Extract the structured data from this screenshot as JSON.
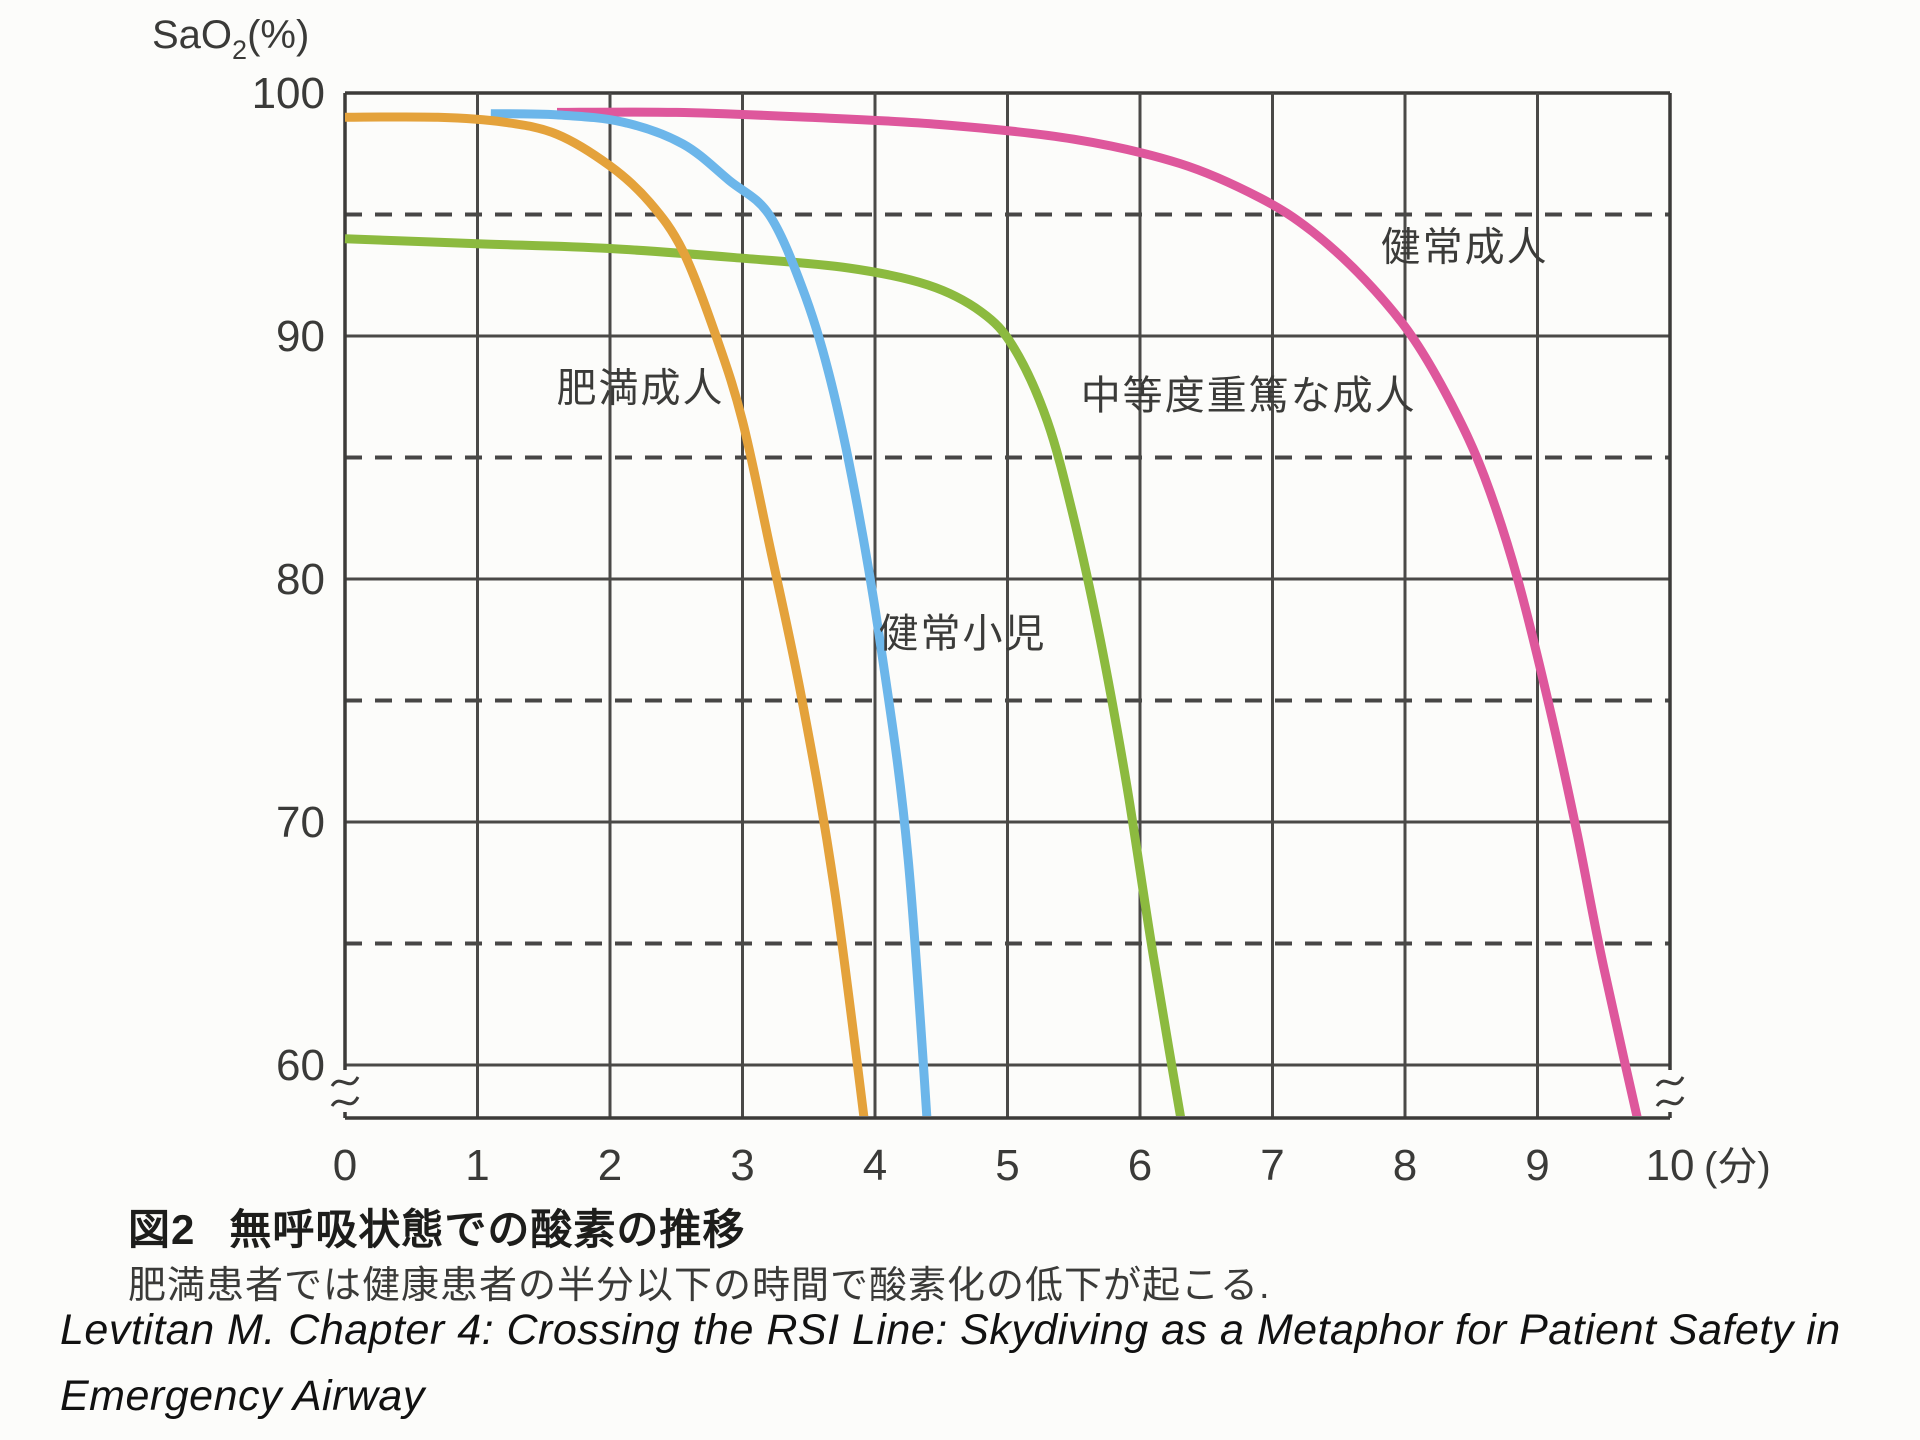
{
  "chart_data": {
    "type": "line",
    "y_axis_label": {
      "base": "SaO",
      "sub": "2",
      "suffix": "(%)"
    },
    "x_unit_label": "(分)",
    "x_ticks": [
      0,
      1,
      2,
      3,
      4,
      5,
      6,
      7,
      8,
      9,
      10
    ],
    "y_ticks": [
      100,
      90,
      80,
      70,
      60
    ],
    "y_dashed_gridlines": [
      95,
      85,
      75,
      65
    ],
    "xlim": [
      0,
      10
    ],
    "ylim_visible": [
      60,
      100
    ],
    "axis_break_below": 60,
    "grid_on": true,
    "legend_position": "inline-labels",
    "colors": {
      "grid_solid": "#4a4947",
      "grid_dashed": "#474645",
      "axis": "#3c3b39",
      "tick_text": "#3a3a38",
      "label_text": "#3b3b39"
    },
    "series": [
      {
        "key": "healthy-adult",
        "name": "健常成人",
        "color": "#de579c",
        "label_pos": [
          8.45,
          93.1
        ],
        "points": [
          [
            1.6,
            99.2
          ],
          [
            2.5,
            99.2
          ],
          [
            3.5,
            99.0
          ],
          [
            4.5,
            98.7
          ],
          [
            5.5,
            98.1
          ],
          [
            6.3,
            97.1
          ],
          [
            6.9,
            95.7
          ],
          [
            7.3,
            94.3
          ],
          [
            7.7,
            92.3
          ],
          [
            8.05,
            90
          ],
          [
            8.35,
            87.2
          ],
          [
            8.6,
            84.2
          ],
          [
            8.85,
            80
          ],
          [
            9.1,
            74.5
          ],
          [
            9.3,
            69.5
          ],
          [
            9.5,
            64
          ],
          [
            9.85,
            55.5
          ]
        ]
      },
      {
        "key": "moderately-ill-adult",
        "name": "中等度重篤な成人",
        "color": "#8cba3f",
        "label_pos": [
          6.82,
          87.0
        ],
        "points": [
          [
            0,
            94
          ],
          [
            1,
            93.8
          ],
          [
            2,
            93.6
          ],
          [
            3,
            93.2
          ],
          [
            3.8,
            92.8
          ],
          [
            4.4,
            92.1
          ],
          [
            4.8,
            91.0
          ],
          [
            5.05,
            89.5
          ],
          [
            5.3,
            86.5
          ],
          [
            5.5,
            82.5
          ],
          [
            5.7,
            77.5
          ],
          [
            5.9,
            71.5
          ],
          [
            6.1,
            64.5
          ],
          [
            6.38,
            55.5
          ]
        ]
      },
      {
        "key": "healthy-child",
        "name": "健常小児",
        "color": "#6cb6ea",
        "label_pos": [
          4.66,
          77.2
        ],
        "points": [
          [
            1.1,
            99.15
          ],
          [
            1.6,
            99.1
          ],
          [
            2.1,
            98.8
          ],
          [
            2.55,
            97.9
          ],
          [
            2.9,
            96.4
          ],
          [
            3.2,
            95.0
          ],
          [
            3.45,
            92.0
          ],
          [
            3.65,
            88.5
          ],
          [
            3.85,
            83.5
          ],
          [
            4.05,
            77
          ],
          [
            4.25,
            68.5
          ],
          [
            4.42,
            55.5
          ]
        ]
      },
      {
        "key": "obese-adult",
        "name": "肥満成人",
        "color": "#e4a23b",
        "label_pos": [
          2.23,
          87.3
        ],
        "points": [
          [
            0,
            99
          ],
          [
            0.7,
            99
          ],
          [
            1.2,
            98.8
          ],
          [
            1.6,
            98.3
          ],
          [
            2.0,
            97
          ],
          [
            2.3,
            95.5
          ],
          [
            2.55,
            93.5
          ],
          [
            2.8,
            90
          ],
          [
            3.0,
            86.5
          ],
          [
            3.2,
            81.5
          ],
          [
            3.45,
            75
          ],
          [
            3.7,
            67
          ],
          [
            3.97,
            55.5
          ]
        ]
      }
    ]
  },
  "caption": {
    "fig_label": "図2",
    "title": "無呼吸状態での酸素の推移",
    "note": "肥満患者では健康患者の半分以下の時間で酸素化の低下が起こる.",
    "citation_line1": "Levtitan M. Chapter 4: Crossing the RSI Line: Skydiving as a Metaphor for Patient Safety in",
    "citation_line2": "Emergency Airway"
  }
}
